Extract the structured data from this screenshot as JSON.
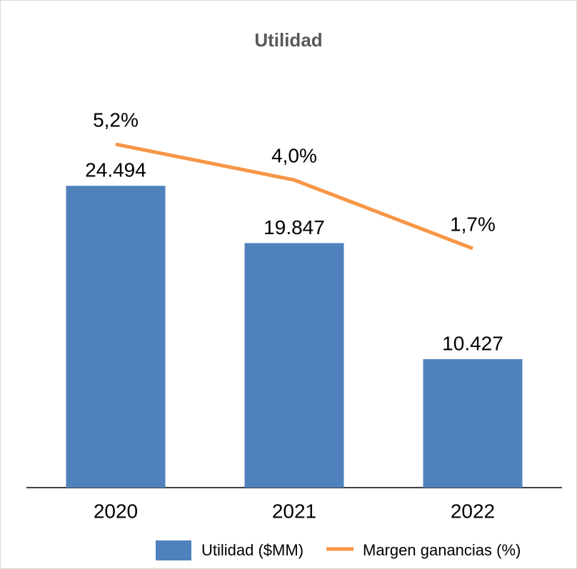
{
  "chart_data": {
    "type": "bar",
    "title": "Utilidad",
    "categories": [
      "2020",
      "2021",
      "2022"
    ],
    "series": [
      {
        "name": "Utilidad ($MM)",
        "type": "bar",
        "color": "#4f81bd",
        "values": [
          24494,
          19847,
          10427
        ],
        "value_labels": [
          "24.494",
          "19.847",
          "10.427"
        ]
      },
      {
        "name": "Margen ganancias (%)",
        "type": "line",
        "axis": "y2",
        "color": "#f79646",
        "values": [
          5.2,
          4.0,
          1.7
        ],
        "value_labels": [
          "5,2%",
          "4,0%",
          "1,7%"
        ]
      }
    ],
    "ylim": [
      0,
      35000
    ],
    "y2lim": [
      -6.33,
      8.15
    ],
    "legend": "bottom"
  }
}
